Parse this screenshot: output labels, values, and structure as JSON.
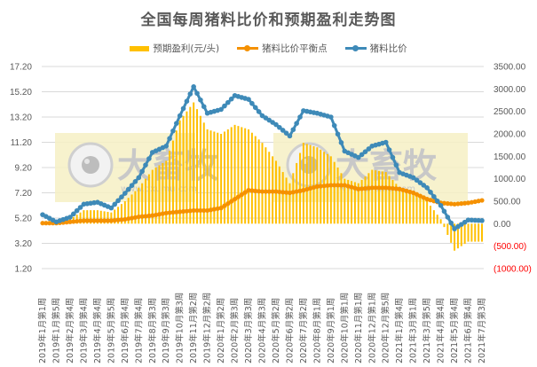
{
  "chart_data": {
    "type": "bar+line",
    "title": "全国每周猪料比价和预期盈利走势图",
    "legend": [
      {
        "label": "预期盈利(元/头)",
        "kind": "bar",
        "color": "#FFC000"
      },
      {
        "label": "猪料比价平衡点",
        "kind": "line",
        "color": "#F59100"
      },
      {
        "label": "猪料比价",
        "kind": "line",
        "color": "#3E8AB8"
      }
    ],
    "legend_position": "top",
    "grid": true,
    "left_axis": {
      "ticks": [
        "17.20",
        "15.20",
        "13.20",
        "11.20",
        "9.20",
        "7.20",
        "5.20",
        "3.20",
        "1.20"
      ],
      "range": [
        1.2,
        17.2
      ]
    },
    "right_axis": {
      "ticks": [
        "3500.00",
        "3000.00",
        "2500.00",
        "2000.00",
        "1500.00",
        "1000.00",
        "500.00",
        "0.00",
        "(500.00)",
        "(1000.00)"
      ],
      "range": [
        -1000,
        3500
      ],
      "negative_color": "#FF0000"
    },
    "categories": [
      "2019年1月第1周",
      "2019年1月第5周",
      "2019年2月第4周",
      "2019年3月第4周",
      "2019年4月第4周",
      "2019年5月第5周",
      "2019年6月第4周",
      "2019年7月第4周",
      "2019年8月第3周",
      "2019年9月第3周",
      "2019年10月第3周",
      "2019年11月第2周",
      "2019年12月第2周",
      "2020年1月第2周",
      "2020年2月第3周",
      "2020年3月第3周",
      "2020年4月第3周",
      "2020年5月第2周",
      "2020年6月第2周",
      "2020年7月第2周",
      "2020年8月第1周",
      "2020年9月第1周",
      "2020年10月第1周",
      "2020年11月第1周",
      "2020年12月第1周",
      "2020年12月第5周",
      "2021年1月第4周",
      "2021年3月第1周",
      "2021年3月第5周",
      "2021年4月第4周",
      "2021年5月第4周",
      "2021年6月第4周",
      "2021年7月第3周"
    ],
    "series": [
      {
        "name": "预期盈利(元/头)",
        "axis": "right",
        "type": "bar",
        "values": [
          0,
          50,
          100,
          300,
          300,
          250,
          500,
          800,
          1200,
          1400,
          2300,
          2700,
          2100,
          2000,
          2200,
          2100,
          1800,
          1400,
          900,
          1800,
          1700,
          1500,
          1000,
          900,
          1200,
          1150,
          800,
          700,
          500,
          100,
          -600,
          -400,
          -400
        ]
      },
      {
        "name": "猪料比价平衡点",
        "axis": "left",
        "type": "line",
        "values": [
          4.8,
          4.8,
          4.9,
          5.0,
          5.0,
          5.0,
          5.1,
          5.3,
          5.4,
          5.6,
          5.7,
          5.8,
          5.8,
          6.0,
          6.7,
          7.4,
          7.3,
          7.3,
          7.2,
          7.4,
          7.7,
          7.8,
          7.8,
          7.5,
          7.6,
          7.6,
          7.5,
          7.2,
          6.7,
          6.4,
          6.3,
          6.4,
          6.6
        ]
      },
      {
        "name": "猪料比价",
        "axis": "left",
        "type": "line",
        "values": [
          5.47,
          4.9,
          5.27,
          6.3,
          6.45,
          6.0,
          7.16,
          8.4,
          10.4,
          10.9,
          13.3,
          15.6,
          13.5,
          13.8,
          14.9,
          14.6,
          13.3,
          12.6,
          11.7,
          13.7,
          13.5,
          13.2,
          10.5,
          10.0,
          10.9,
          11.2,
          8.8,
          8.4,
          7.6,
          6.2,
          4.35,
          5.05,
          5.0
        ]
      }
    ],
    "xlabel": "",
    "ylabel": ""
  },
  "watermark": {
    "brand": "大畜牧",
    "url": "www.dxumu.com"
  }
}
